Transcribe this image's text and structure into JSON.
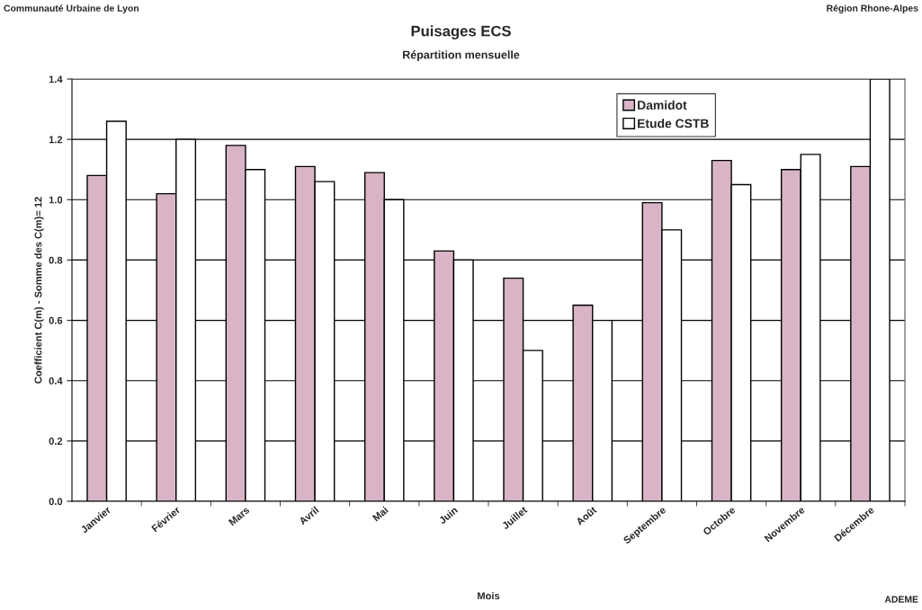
{
  "chart_data": {
    "type": "bar",
    "title": "Puisages ECS",
    "subtitle": "Répartition mensuelle",
    "xlabel": "Mois",
    "ylabel": "Coefficient C(m) - Somme des C(m)= 12",
    "categories": [
      "Janvier",
      "Février",
      "Mars",
      "Avril",
      "Mai",
      "Juin",
      "Juillet",
      "Août",
      "Septembre",
      "Octobre",
      "Novembre",
      "Décembre"
    ],
    "series": [
      {
        "name": "Damidot",
        "color": "#d8b4c6",
        "values": [
          1.08,
          1.02,
          1.18,
          1.11,
          1.09,
          0.83,
          0.74,
          0.65,
          0.99,
          1.13,
          1.1,
          1.11
        ]
      },
      {
        "name": "Etude CSTB",
        "color": "#ffffff",
        "values": [
          1.26,
          1.2,
          1.1,
          1.06,
          1.0,
          0.8,
          0.5,
          0.6,
          0.9,
          1.05,
          1.15,
          1.4
        ]
      }
    ],
    "ylim": [
      0,
      1.4
    ],
    "yticks": [
      {
        "value": 0,
        "label": "0.0"
      },
      {
        "value": 0.2,
        "label": "0.2"
      },
      {
        "value": 0.4,
        "label": "0.4"
      },
      {
        "value": 0.6,
        "label": "0.6"
      },
      {
        "value": 0.8,
        "label": "0.8"
      },
      {
        "value": 1.0,
        "label": "1.0"
      },
      {
        "value": 1.2,
        "label": "1.2"
      },
      {
        "value": 1.4,
        "label": "1.4"
      }
    ],
    "grid": "y",
    "legend": "top right",
    "annotations": [
      "Communauté Urbaine de Lyon",
      "Région Rhone-Alpes",
      "ADEME"
    ]
  }
}
